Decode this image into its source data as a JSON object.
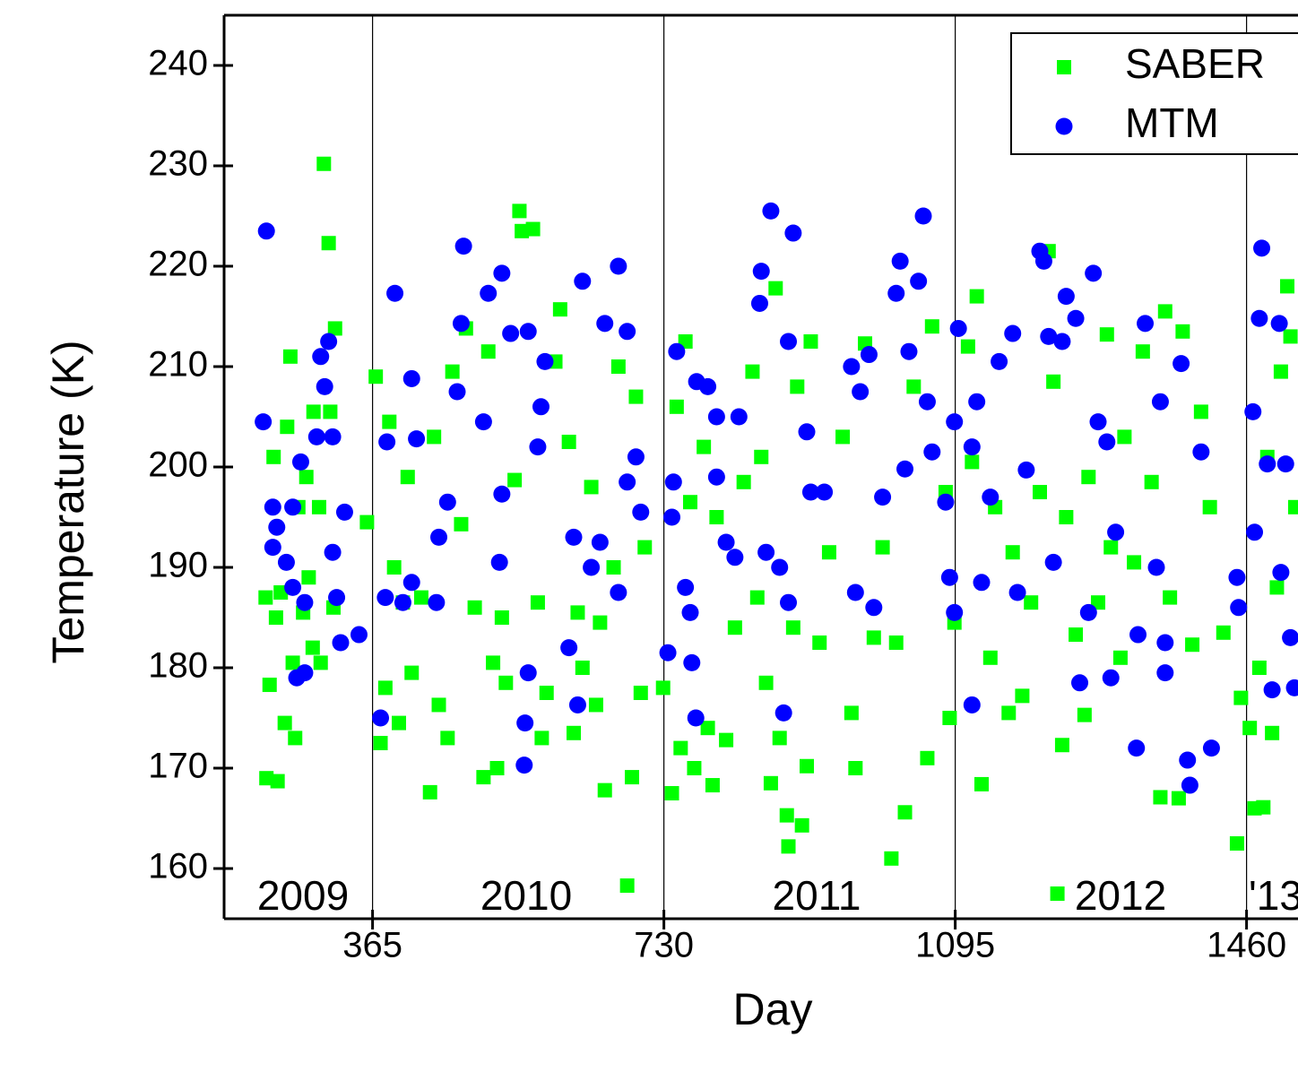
{
  "chart_data": {
    "type": "scatter",
    "x_label": "Day",
    "y_label": "Temperature (K)",
    "xlim": [
      179,
      1524
    ],
    "ylim": [
      155,
      245
    ],
    "xticks": [
      365,
      730,
      1095,
      1460
    ],
    "yticks": [
      160,
      170,
      180,
      190,
      200,
      210,
      220,
      230,
      240
    ],
    "annotations": [
      "2009",
      "2010",
      "2011",
      "2012",
      "'13"
    ],
    "legend": "upper right",
    "series": [
      {
        "name": "SABER",
        "color": "#00ff00",
        "marker": "square",
        "x": [
          231,
          232,
          236,
          241,
          244,
          246,
          250,
          255,
          258,
          262,
          265,
          268,
          272,
          278,
          282,
          285,
          290,
          298,
          304,
          310,
          312,
          318,
          316,
          300,
          291,
          358,
          369,
          375,
          381,
          386,
          392,
          398,
          403,
          409,
          414,
          426,
          437,
          442,
          448,
          459,
          465,
          476,
          482,
          493,
          504,
          510,
          516,
          521,
          527,
          532,
          543,
          549,
          552,
          566,
          572,
          577,
          583,
          594,
          600,
          611,
          617,
          622,
          628,
          639,
          645,
          650,
          656,
          667,
          673,
          684,
          690,
          695,
          701,
          706,
          729,
          740,
          746,
          751,
          757,
          763,
          768,
          780,
          785,
          791,
          796,
          808,
          819,
          830,
          841,
          847,
          852,
          858,
          864,
          870,
          875,
          884,
          886,
          892,
          897,
          903,
          909,
          914,
          925,
          937,
          954,
          965,
          970,
          982,
          993,
          1004,
          1015,
          1021,
          1032,
          1043,
          1060,
          1066,
          1083,
          1088,
          1094,
          1111,
          1116,
          1122,
          1128,
          1139,
          1145,
          1162,
          1167,
          1179,
          1190,
          1201,
          1212,
          1218,
          1223,
          1229,
          1234,
          1246,
          1257,
          1262,
          1274,
          1285,
          1290,
          1302,
          1307,
          1319,
          1330,
          1341,
          1352,
          1358,
          1364,
          1375,
          1380,
          1392,
          1403,
          1414,
          1431,
          1448,
          1453,
          1464,
          1470,
          1476,
          1481,
          1486,
          1492,
          1498,
          1503,
          1511,
          1515,
          1521
        ],
        "values": [
          187,
          169,
          178.3,
          201,
          185,
          168.7,
          187.5,
          174.5,
          204,
          211,
          180.5,
          173,
          196,
          185.5,
          199,
          189,
          182,
          196,
          230.2,
          222.3,
          205.5,
          213.8,
          186,
          180.5,
          205.5,
          194.5,
          209,
          172.5,
          178,
          204.5,
          190,
          174.5,
          186.5,
          199,
          179.5,
          187,
          167.6,
          203,
          176.3,
          173,
          209.5,
          194.3,
          213.8,
          186,
          169.1,
          211.5,
          180.5,
          170,
          185,
          178.5,
          198.7,
          225.5,
          223.5,
          223.7,
          186.5,
          173,
          177.5,
          210.5,
          215.7,
          202.5,
          173.5,
          185.5,
          180,
          198,
          176.3,
          184.5,
          167.8,
          190,
          210,
          158.3,
          169.1,
          207,
          177.5,
          192,
          178,
          167.5,
          206,
          172,
          212.5,
          196.5,
          170,
          202,
          174,
          168.3,
          195,
          172.8,
          184,
          198.5,
          209.5,
          187,
          201,
          178.5,
          168.5,
          217.8,
          173,
          165.3,
          162.2,
          184,
          208,
          164.3,
          170.2,
          212.5,
          182.5,
          191.5,
          203,
          175.5,
          170,
          212.3,
          183,
          192,
          161,
          182.5,
          165.6,
          208,
          171,
          214,
          197.5,
          175,
          184.5,
          212,
          200.5,
          217,
          168.4,
          181,
          196,
          175.5,
          191.5,
          177.2,
          186.5,
          197.5,
          221.5,
          208.5,
          157.5,
          172.3,
          195,
          183.3,
          175.3,
          199,
          186.5,
          213.2,
          192,
          181,
          203,
          190.5,
          211.5,
          198.5,
          167.1,
          215.5,
          187,
          167,
          213.5,
          182.3,
          205.5,
          196,
          183.5,
          162.5,
          177,
          174,
          166,
          180,
          166.1,
          201,
          173.5,
          188,
          209.5,
          218,
          213,
          196
        ]
      },
      {
        "name": "MTM",
        "color": "#0000ff",
        "marker": "circle",
        "x": [
          232,
          228,
          240,
          240,
          245,
          257,
          265,
          265,
          270,
          275,
          280,
          280,
          295,
          300,
          305,
          310,
          315,
          315,
          320,
          325,
          330,
          348,
          375,
          381,
          393,
          383,
          403,
          414,
          420,
          414,
          445,
          448,
          459,
          471,
          476,
          479,
          504,
          510,
          527,
          524,
          527,
          538,
          555,
          556,
          560,
          572,
          576,
          581,
          560,
          611,
          617,
          622,
          628,
          639,
          650,
          656,
          673,
          684,
          684,
          695,
          701,
          673,
          735,
          740,
          742,
          746,
          757,
          763,
          765,
          770,
          771,
          785,
          796,
          796,
          808,
          819,
          824,
          850,
          852,
          864,
          858,
          875,
          880,
          886,
          892,
          886,
          909,
          914,
          931,
          965,
          970,
          976,
          987,
          993,
          1004,
          1021,
          1026,
          1032,
          1037,
          1049,
          1055,
          1060,
          1066,
          1083,
          1088,
          1094,
          1099,
          1094,
          1116,
          1116,
          1122,
          1128,
          1139,
          1150,
          1167,
          1173,
          1184,
          1201,
          1206,
          1212,
          1218,
          1229,
          1234,
          1246,
          1251,
          1268,
          1262,
          1274,
          1285,
          1290,
          1296,
          1322,
          1324,
          1333,
          1347,
          1352,
          1358,
          1358,
          1378,
          1386,
          1389,
          1403,
          1416,
          1448,
          1450,
          1468,
          1470,
          1479,
          1476,
          1486,
          1492,
          1501,
          1503,
          1509,
          1515,
          1520
        ],
        "values": [
          223.5,
          204.5,
          196,
          192,
          194,
          190.5,
          196,
          188,
          179,
          200.5,
          186.5,
          179.5,
          203,
          211,
          208,
          212.5,
          203,
          191.5,
          187,
          182.5,
          195.5,
          183.3,
          175,
          187,
          217.3,
          202.5,
          186.5,
          188.5,
          202.8,
          208.8,
          186.5,
          193,
          196.5,
          207.5,
          214.3,
          222,
          204.5,
          217.3,
          219.3,
          190.5,
          197.3,
          213.3,
          170.3,
          174.5,
          213.5,
          202,
          206,
          210.5,
          179.5,
          182,
          193,
          176.3,
          218.5,
          190,
          192.5,
          214.3,
          220,
          213.5,
          198.5,
          201,
          195.5,
          187.5,
          181.5,
          195,
          198.5,
          211.5,
          188,
          185.5,
          180.5,
          175,
          208.5,
          208,
          205,
          199,
          192.5,
          191,
          205,
          216.3,
          219.5,
          225.5,
          191.5,
          190,
          175.5,
          212.5,
          223.3,
          186.5,
          203.5,
          197.5,
          197.5,
          210,
          187.5,
          207.5,
          211.2,
          186,
          197,
          217.3,
          220.5,
          199.8,
          211.5,
          218.5,
          225,
          206.5,
          201.5,
          196.5,
          189,
          204.5,
          213.8,
          185.5,
          202,
          176.3,
          206.5,
          188.5,
          197,
          210.5,
          213.3,
          187.5,
          199.7,
          221.5,
          220.5,
          213,
          190.5,
          212.5,
          217,
          214.8,
          178.5,
          219.3,
          185.5,
          204.5,
          202.5,
          179,
          193.5,
          172,
          183.3,
          214.3,
          190,
          206.5,
          182.5,
          179.5,
          210.3,
          170.8,
          168.3,
          201.5,
          172,
          189,
          186,
          205.5,
          193.5,
          221.8,
          214.8,
          200.3,
          177.8,
          214.3,
          189.5,
          200.3,
          183,
          178
        ]
      }
    ]
  }
}
